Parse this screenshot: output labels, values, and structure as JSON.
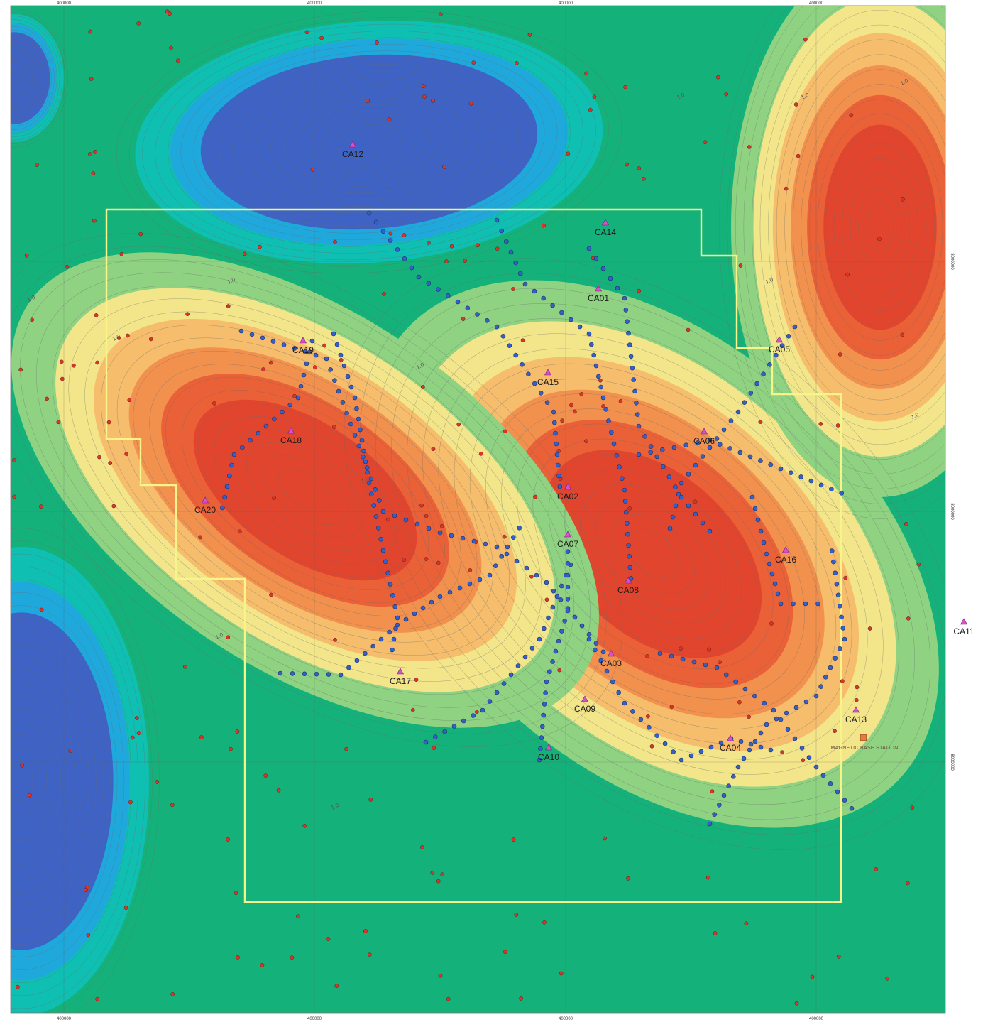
{
  "map": {
    "colors": {
      "ramp": [
        "#3f63c4",
        "#1fa8dc",
        "#0fbfb2",
        "#14b27a",
        "#8fd382",
        "#f3e68a",
        "#f6bd6c",
        "#f2914e",
        "#ea6037",
        "#e2452d"
      ],
      "boundary": "#f7f48a",
      "station_symbol": "#d94fd0",
      "sample_point_red": "#d8362a",
      "sample_point_blue": "#3560c8",
      "base_station": "#e07d42",
      "grid": "#555555"
    },
    "grid_tick_labels": {
      "top": [
        "400000",
        "400000",
        "400000",
        "400000"
      ],
      "bottom": [
        "400000",
        "400000",
        "400000",
        "400000"
      ],
      "right": [
        "8000000",
        "8000000",
        "8000000"
      ]
    },
    "contour_labels": [
      "1.0",
      "1.0",
      "1.0",
      "1.0",
      "1.0",
      "1.0",
      "1.0",
      "1.0",
      "1.0",
      "1.0",
      "1.0",
      "1.0"
    ],
    "base_station": {
      "label": "MAGNETIC BASE STATION",
      "icon": "square-marker-icon"
    },
    "stations": [
      {
        "name": "CA12",
        "icon": "triangle-marker-icon"
      },
      {
        "name": "CA14",
        "icon": "triangle-marker-icon"
      },
      {
        "name": "CA01",
        "icon": "triangle-marker-icon"
      },
      {
        "name": "CA19",
        "icon": "triangle-marker-icon"
      },
      {
        "name": "CA05",
        "icon": "triangle-marker-icon"
      },
      {
        "name": "CA15",
        "icon": "triangle-marker-icon"
      },
      {
        "name": "CA18",
        "icon": "triangle-marker-icon"
      },
      {
        "name": "CA06",
        "icon": "triangle-marker-icon"
      },
      {
        "name": "CA20",
        "icon": "triangle-marker-icon"
      },
      {
        "name": "CA02",
        "icon": "triangle-marker-icon"
      },
      {
        "name": "CA07",
        "icon": "triangle-marker-icon"
      },
      {
        "name": "CA16",
        "icon": "triangle-marker-icon"
      },
      {
        "name": "CA08",
        "icon": "triangle-marker-icon"
      },
      {
        "name": "CA11",
        "icon": "triangle-marker-icon"
      },
      {
        "name": "CA03",
        "icon": "triangle-marker-icon"
      },
      {
        "name": "CA17",
        "icon": "triangle-marker-icon"
      },
      {
        "name": "CA09",
        "icon": "triangle-marker-icon"
      },
      {
        "name": "CA13",
        "icon": "triangle-marker-icon"
      },
      {
        "name": "CA04",
        "icon": "triangle-marker-icon"
      },
      {
        "name": "CA10",
        "icon": "triangle-marker-icon"
      }
    ]
  }
}
